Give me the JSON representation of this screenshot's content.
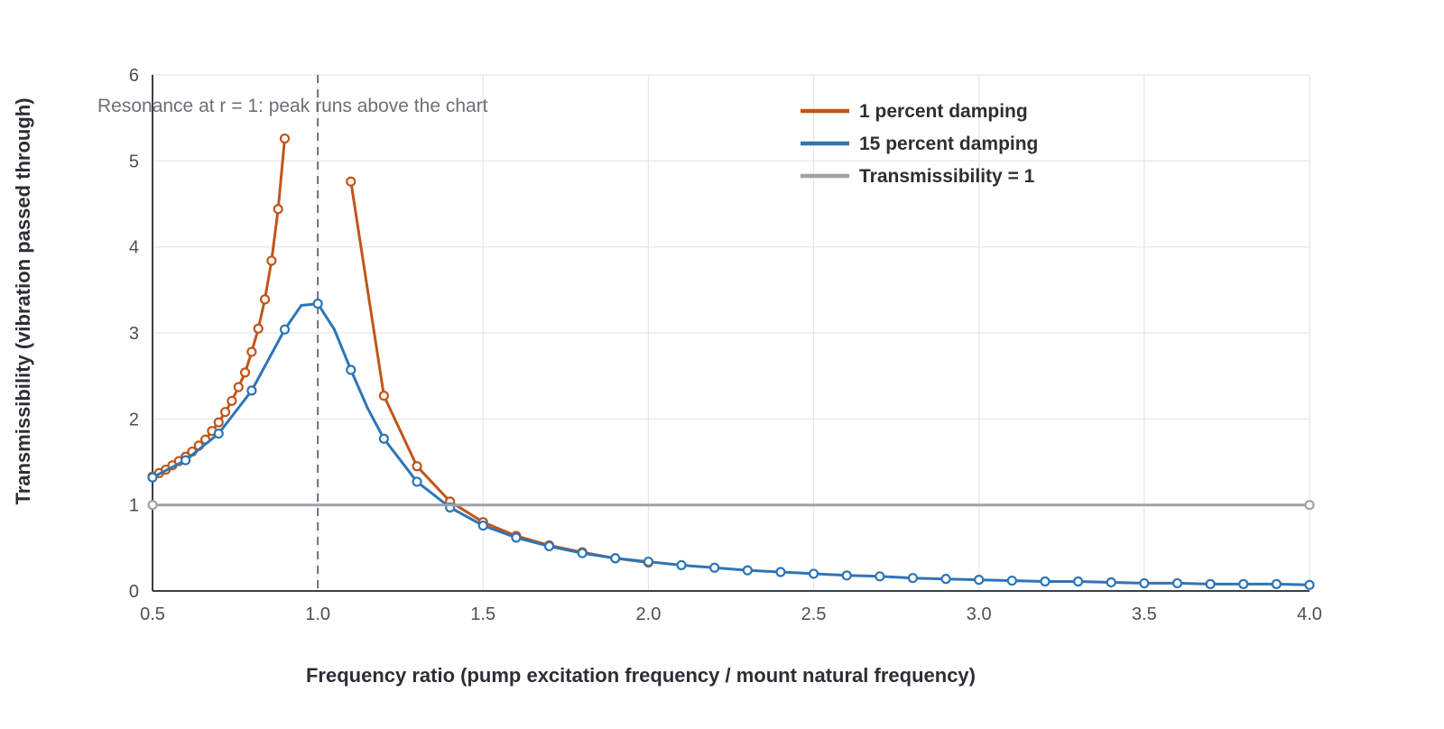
{
  "chart_data": {
    "type": "line",
    "xlabel": "Frequency ratio (pump excitation frequency / mount natural frequency)",
    "ylabel": "Transmissibility (vibration passed through)",
    "xlim": [
      0.5,
      4.0
    ],
    "ylim": [
      0,
      6
    ],
    "x_ticks": [
      "0.5",
      "1.0",
      "1.5",
      "2.0",
      "2.5",
      "3.0",
      "3.5",
      "4.0"
    ],
    "y_ticks": [
      "0",
      "1",
      "2",
      "3",
      "4",
      "5",
      "6"
    ],
    "grid": true,
    "legend_position": "top-right",
    "annotation": {
      "text": "Resonance at r = 1: peak runs above the chart",
      "x": 1.0
    },
    "series": [
      {
        "name": "1 percent damping",
        "color": "#c0561a",
        "markers": true,
        "x": [
          0.5,
          0.52,
          0.54,
          0.56,
          0.58,
          0.6,
          0.62,
          0.64,
          0.66,
          0.68,
          0.7,
          0.72,
          0.74,
          0.76,
          0.78,
          0.8,
          0.82,
          0.84,
          0.86,
          0.88,
          0.9
        ],
        "values": [
          1.33,
          1.37,
          1.41,
          1.46,
          1.51,
          1.56,
          1.62,
          1.69,
          1.76,
          1.86,
          1.96,
          2.08,
          2.21,
          2.37,
          2.54,
          2.78,
          3.05,
          3.39,
          3.84,
          4.44,
          5.26
        ]
      },
      {
        "name": "1 percent damping",
        "color": "#c0561a",
        "markers": true,
        "legend": false,
        "x": [
          1.1,
          1.2,
          1.3,
          1.4,
          1.5,
          1.6,
          1.7,
          1.8,
          1.9,
          2.0
        ],
        "values": [
          4.76,
          2.27,
          1.45,
          1.04,
          0.8,
          0.64,
          0.53,
          0.45,
          0.38,
          0.33
        ]
      },
      {
        "name": "15 percent damping",
        "color": "#2e75b6",
        "markers": true,
        "x": [
          0.5,
          0.6,
          0.7,
          0.8,
          0.9,
          0.95,
          1.0,
          1.05,
          1.1,
          1.15,
          1.2,
          1.3,
          1.4,
          1.5,
          1.6,
          1.7,
          1.8,
          1.9,
          2.0,
          2.1,
          2.2,
          2.3,
          2.4,
          2.5,
          2.6,
          2.7,
          2.8,
          2.9,
          3.0,
          3.1,
          3.2,
          3.3,
          3.4,
          3.5,
          3.6,
          3.7,
          3.8,
          3.9,
          4.0
        ],
        "values": [
          1.32,
          1.52,
          1.83,
          2.33,
          3.04,
          3.32,
          3.34,
          3.04,
          2.57,
          2.13,
          1.77,
          1.27,
          0.97,
          0.76,
          0.62,
          0.52,
          0.44,
          0.38,
          0.34,
          0.3,
          0.27,
          0.24,
          0.22,
          0.2,
          0.18,
          0.17,
          0.15,
          0.14,
          0.13,
          0.12,
          0.11,
          0.11,
          0.1,
          0.09,
          0.09,
          0.08,
          0.08,
          0.08,
          0.07
        ],
        "marker_x": [
          0.5,
          0.6,
          0.7,
          0.8,
          0.9,
          1.0,
          1.1,
          1.2,
          1.3,
          1.4,
          1.5,
          1.6,
          1.7,
          1.8,
          1.9,
          2.0,
          2.1,
          2.2,
          2.3,
          2.4,
          2.5,
          2.6,
          2.7,
          2.8,
          2.9,
          3.0,
          3.1,
          3.2,
          3.3,
          3.4,
          3.5,
          3.6,
          3.7,
          3.8,
          3.9,
          4.0
        ]
      },
      {
        "name": "Transmissibility = 1",
        "color": "#9ea2a9",
        "markers": true,
        "x": [
          0.5,
          4.0
        ],
        "values": [
          1,
          1
        ]
      }
    ]
  }
}
